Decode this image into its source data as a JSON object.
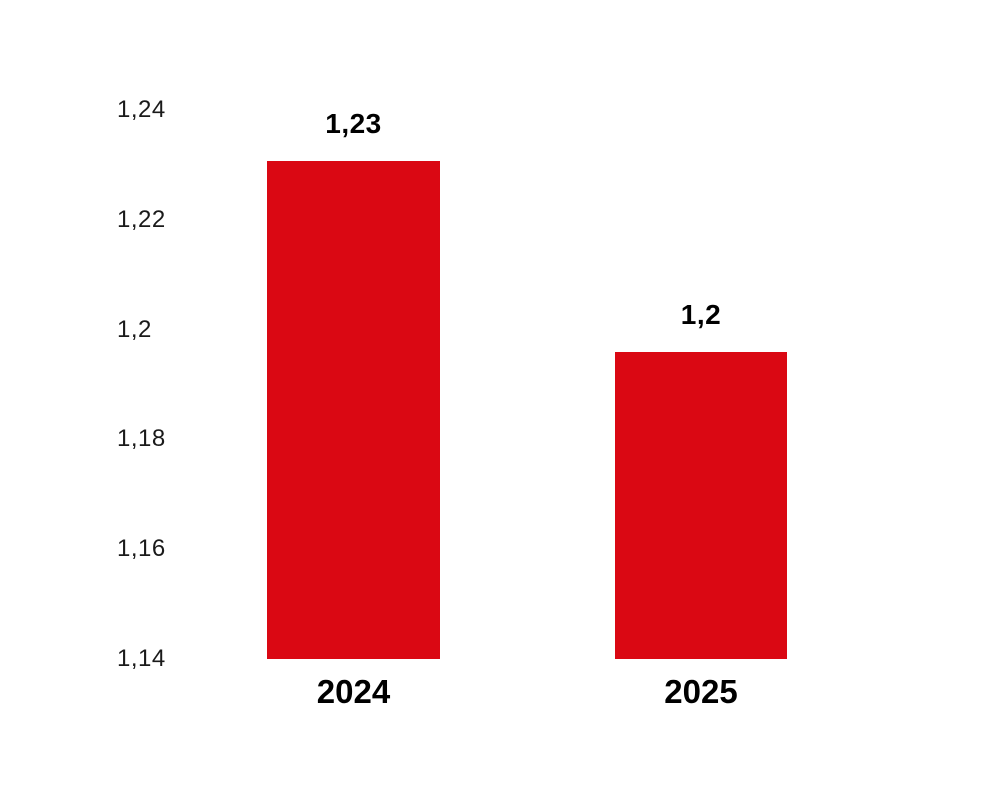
{
  "chart_data": {
    "type": "bar",
    "title": "",
    "xlabel": "",
    "ylabel": "",
    "categories": [
      "2024",
      "2025"
    ],
    "values": [
      1.23,
      1.2
    ],
    "value_labels": [
      "1,23",
      "1,2"
    ],
    "plotted_values": [
      1.2307,
      1.196
    ],
    "ylim": [
      1.14,
      1.24
    ],
    "y_ticks": [
      {
        "value": 1.24,
        "label": "1,24"
      },
      {
        "value": 1.22,
        "label": "1,22"
      },
      {
        "value": 1.2,
        "label": "1,2"
      },
      {
        "value": 1.18,
        "label": "1,18"
      },
      {
        "value": 1.16,
        "label": "1,16"
      },
      {
        "value": 1.14,
        "label": "1,14"
      }
    ],
    "grid": false,
    "legend": "none",
    "colors": {
      "bar": "#da0813",
      "value_label": "#000000",
      "category_label": "#000000",
      "tick_label": "#1a1a1a",
      "background": "#ffffff"
    }
  }
}
